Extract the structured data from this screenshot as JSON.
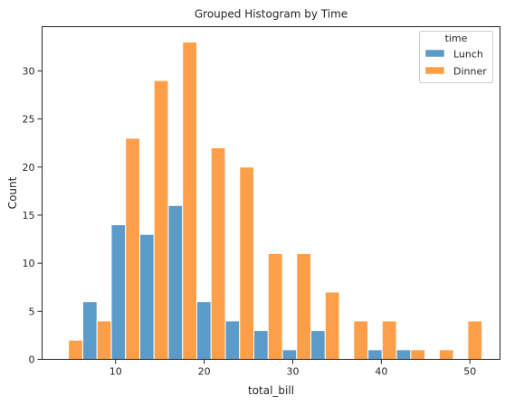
{
  "chart_data": {
    "type": "bar",
    "subtype": "grouped-histogram",
    "title": "Grouped Histogram by Time",
    "xlabel": "total_bill",
    "ylabel": "Count",
    "xlim": [
      1.7,
      53.4
    ],
    "ylim": [
      0,
      34.6
    ],
    "xticks": [
      10,
      20,
      30,
      40,
      50
    ],
    "yticks": [
      0,
      5,
      10,
      15,
      20,
      25,
      30
    ],
    "grid": false,
    "legend": {
      "title": "time",
      "placement": "top-right"
    },
    "bin_edges": [
      3.07,
      6.29,
      9.51,
      12.73,
      15.95,
      19.17,
      22.39,
      25.61,
      28.83,
      32.05,
      35.27,
      38.49,
      41.71,
      44.93,
      48.15,
      51.37
    ],
    "series": [
      {
        "name": "Lunch",
        "color": "#5b9bc9",
        "values": [
          0,
          6,
          14,
          13,
          16,
          6,
          4,
          3,
          1,
          3,
          0,
          1,
          1,
          0,
          0
        ]
      },
      {
        "name": "Dinner",
        "color": "#fd9f48",
        "values": [
          2,
          4,
          23,
          29,
          33,
          22,
          20,
          11,
          11,
          7,
          4,
          4,
          1,
          1,
          4
        ]
      }
    ]
  }
}
